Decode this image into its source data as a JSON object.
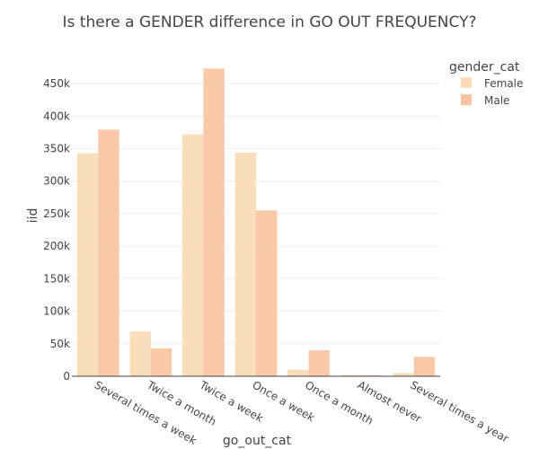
{
  "chart_data": {
    "type": "bar",
    "title": "Is there a GENDER difference in GO OUT FREQUENCY?",
    "xlabel": "go_out_cat",
    "ylabel": "iid",
    "categories": [
      "Several times a week",
      "Twice a month",
      "Twice a week",
      "Once a week",
      "Once a month",
      "Almost never",
      "Several times a year"
    ],
    "series": [
      {
        "name": "Female",
        "values": [
          343000,
          69000,
          372000,
          344000,
          10000,
          2000,
          5000
        ]
      },
      {
        "name": "Male",
        "values": [
          379000,
          43000,
          473000,
          255000,
          40000,
          1500,
          30000
        ]
      }
    ],
    "yticks": [
      0,
      50000,
      100000,
      150000,
      200000,
      250000,
      300000,
      350000,
      400000,
      450000
    ],
    "ytick_labels": [
      "0",
      "50k",
      "100k",
      "150k",
      "200k",
      "250k",
      "300k",
      "350k",
      "400k",
      "450k"
    ],
    "ylim": [
      0,
      497000
    ],
    "legend": {
      "title": "gender_cat",
      "position": "top-right"
    },
    "colors": {
      "Female": "#fad9b4",
      "Male": "#f8c3a1"
    },
    "grid": true
  }
}
